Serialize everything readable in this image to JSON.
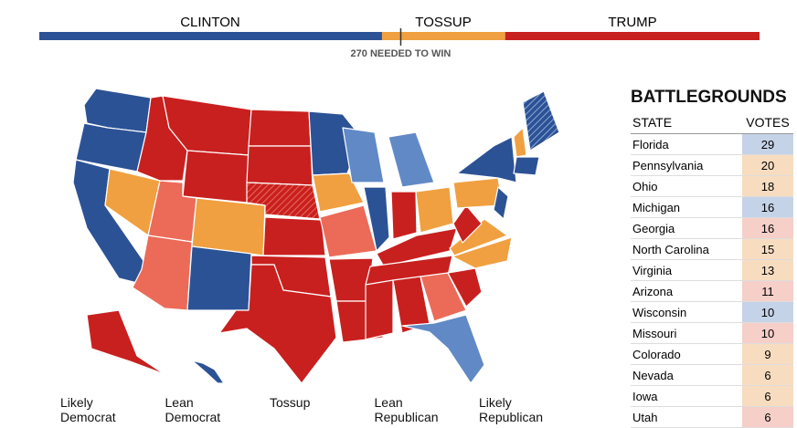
{
  "header": {
    "candidates": [
      {
        "name": "CLINTON",
        "color": "#2c5296",
        "votes": 256
      },
      {
        "name": "TOSSUP",
        "color": "#f0a040",
        "votes": 92
      },
      {
        "name": "TRUMP",
        "color": "#c8201f",
        "votes": 190
      }
    ],
    "threshold": {
      "value": 270,
      "label": "270 NEEDED TO WIN"
    }
  },
  "map_legend": [
    "Likely Democrat",
    "Lean Democrat",
    "Tossup",
    "Lean Republican",
    "Likely Republican"
  ],
  "battlegrounds": {
    "title": "BATTLEGROUNDS",
    "columns": [
      "STATE",
      "VOTES"
    ],
    "rows": [
      [
        "Florida",
        29
      ],
      [
        "Pennsylvania",
        20
      ],
      [
        "Ohio",
        18
      ],
      [
        "Michigan",
        16
      ],
      [
        "Georgia",
        16
      ],
      [
        "North Carolina",
        15
      ],
      [
        "Virginia",
        13
      ],
      [
        "Arizona",
        11
      ],
      [
        "Wisconsin",
        10
      ],
      [
        "Missouri",
        10
      ],
      [
        "Colorado",
        9
      ],
      [
        "Nevada",
        6
      ],
      [
        "Iowa",
        6
      ],
      [
        "Utah",
        6
      ]
    ],
    "row_colors": [
      "#c5d3e8",
      "#f8dcc0",
      "#f8dcc0",
      "#c5d3e8",
      "#f6cfc9",
      "#f8dcc0",
      "#f8dcc0",
      "#f6cfc9",
      "#c5d3e8",
      "#f6cfc9",
      "#f8dcc0",
      "#f8dcc0",
      "#f8dcc0",
      "#f6cfc9"
    ]
  }
}
